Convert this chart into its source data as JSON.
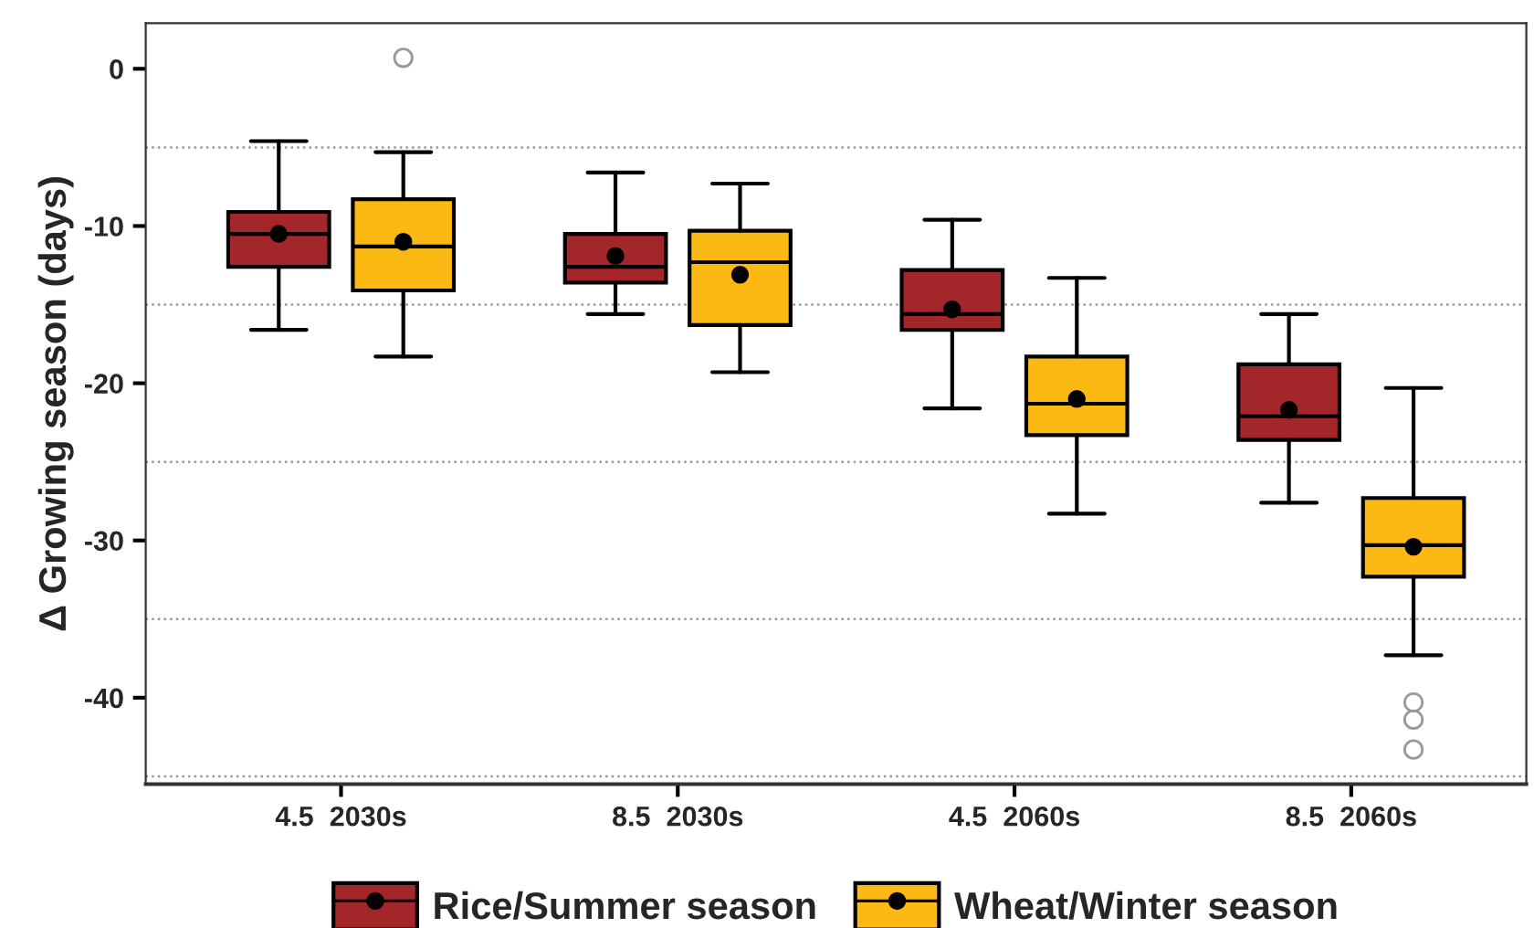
{
  "chart_data": {
    "type": "box",
    "categories": [
      "4.5  2030s",
      "8.5  2030s",
      "4.5  2060s",
      "8.5  2060s"
    ],
    "ylabel": "Δ Growing season (days)",
    "ylim": [
      -45.5,
      2.9
    ],
    "yticks": [
      0,
      -10,
      -20,
      -30,
      -40
    ],
    "legend": "bottom",
    "marker": "circle",
    "ref_lines": [
      {
        "axis": "y",
        "value": -5,
        "color": "#999999",
        "line_style": "dotted"
      },
      {
        "axis": "y",
        "value": -15,
        "color": "#999999",
        "line_style": "dotted"
      },
      {
        "axis": "y",
        "value": -25,
        "color": "#999999",
        "line_style": "dotted"
      },
      {
        "axis": "y",
        "value": -35,
        "color": "#999999",
        "line_style": "dotted"
      },
      {
        "axis": "y",
        "value": -45,
        "color": "#999999",
        "line_style": "dotted"
      }
    ],
    "series": [
      {
        "name": "Rice/Summer season",
        "color": "#a3262a",
        "boxes": [
          {
            "low": -16.6,
            "q1": -12.6,
            "median": -10.5,
            "q3": -9.1,
            "high": -4.6,
            "mean": -10.5
          },
          {
            "low": -15.6,
            "q1": -13.6,
            "median": -12.6,
            "q3": -10.5,
            "high": -6.6,
            "mean": -11.9
          },
          {
            "low": -21.6,
            "q1": -16.6,
            "median": -15.6,
            "q3": -12.8,
            "high": -9.6,
            "mean": -15.3
          },
          {
            "low": -27.6,
            "q1": -23.6,
            "median": -22.1,
            "q3": -18.8,
            "high": -15.6,
            "mean": -21.7
          }
        ]
      },
      {
        "name": "Wheat/Winter season",
        "color": "#fdb913",
        "boxes": [
          {
            "low": -18.3,
            "q1": -14.1,
            "median": -11.3,
            "q3": -8.3,
            "high": -5.3,
            "mean": -11.0,
            "outliers": [
              0.7
            ]
          },
          {
            "low": -19.3,
            "q1": -16.3,
            "median": -12.3,
            "q3": -10.3,
            "high": -7.3,
            "mean": -13.1
          },
          {
            "low": -28.3,
            "q1": -23.3,
            "median": -21.3,
            "q3": -18.3,
            "high": -13.3,
            "mean": -21.0
          },
          {
            "low": -37.3,
            "q1": -32.3,
            "median": -30.3,
            "q3": -27.3,
            "high": -20.3,
            "mean": -30.4,
            "outliers": [
              -40.3,
              -41.4,
              -43.3
            ]
          }
        ]
      }
    ]
  }
}
